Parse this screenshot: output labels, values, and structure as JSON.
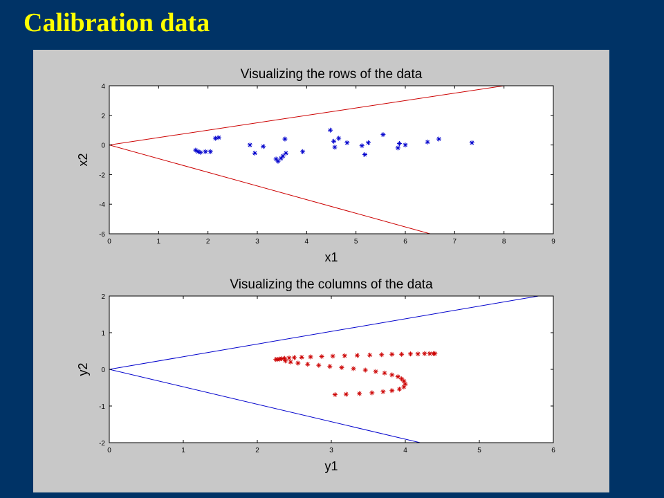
{
  "slide": {
    "title": "Calibration data"
  },
  "chart_data": [
    {
      "type": "scatter",
      "title": "Visualizing the rows of the data",
      "xlabel": "x1",
      "ylabel": "x2",
      "xlim": [
        0,
        9
      ],
      "ylim": [
        -6,
        4
      ],
      "xticks": [
        0,
        1,
        2,
        3,
        4,
        5,
        6,
        7,
        8,
        9
      ],
      "yticks": [
        -6,
        -4,
        -2,
        0,
        2,
        4
      ],
      "grid": false,
      "marker_color": "#0000cc",
      "line_color": "#cc0000",
      "lines": [
        {
          "x": [
            0,
            8
          ],
          "y": [
            0,
            4
          ]
        },
        {
          "x": [
            0,
            6.5
          ],
          "y": [
            0,
            -6
          ]
        }
      ],
      "points": {
        "x": [
          1.75,
          1.8,
          1.85,
          1.95,
          2.05,
          2.15,
          2.22,
          2.85,
          2.95,
          3.12,
          3.38,
          3.42,
          3.48,
          3.52,
          3.56,
          3.58,
          3.92,
          4.48,
          4.55,
          4.57,
          4.65,
          4.82,
          5.12,
          5.18,
          5.25,
          5.55,
          5.85,
          5.88,
          6.0,
          6.45,
          6.68,
          7.35
        ],
        "y": [
          -0.35,
          -0.45,
          -0.5,
          -0.45,
          -0.45,
          0.45,
          0.5,
          0.0,
          -0.55,
          -0.1,
          -0.95,
          -1.1,
          -0.9,
          -0.75,
          0.4,
          -0.55,
          -0.45,
          1.0,
          0.25,
          -0.15,
          0.45,
          0.15,
          -0.05,
          -0.65,
          0.15,
          0.7,
          -0.2,
          0.1,
          0.0,
          0.2,
          0.4,
          0.15
        ]
      }
    },
    {
      "type": "scatter",
      "title": "Visualizing the columns of the data",
      "xlabel": "y1",
      "ylabel": "y2",
      "xlim": [
        0,
        6
      ],
      "ylim": [
        -2,
        2
      ],
      "xticks": [
        0,
        1,
        2,
        3,
        4,
        5,
        6
      ],
      "yticks": [
        -2,
        -1,
        0,
        1,
        2
      ],
      "grid": false,
      "marker_color": "#cc0000",
      "line_color": "#0000cc",
      "lines": [
        {
          "x": [
            0,
            5.8
          ],
          "y": [
            0,
            2
          ]
        },
        {
          "x": [
            0,
            4.2
          ],
          "y": [
            0,
            -2
          ]
        }
      ],
      "points": {
        "x": [
          2.25,
          2.27,
          2.3,
          2.33,
          2.37,
          2.43,
          2.5,
          2.6,
          2.72,
          2.87,
          3.02,
          3.18,
          3.35,
          3.52,
          3.68,
          3.82,
          3.95,
          4.07,
          4.17,
          4.26,
          4.33,
          4.38,
          4.4,
          2.38,
          2.45,
          2.55,
          2.68,
          2.83,
          2.98,
          3.14,
          3.3,
          3.46,
          3.6,
          3.72,
          3.82,
          3.9,
          3.95,
          3.98,
          4.0,
          3.98,
          3.92,
          3.82,
          3.7,
          3.55,
          3.38,
          3.2,
          3.05
        ],
        "y": [
          0.27,
          0.27,
          0.28,
          0.29,
          0.3,
          0.31,
          0.32,
          0.33,
          0.34,
          0.35,
          0.36,
          0.37,
          0.38,
          0.39,
          0.4,
          0.41,
          0.41,
          0.42,
          0.42,
          0.43,
          0.43,
          0.43,
          0.43,
          0.23,
          0.2,
          0.17,
          0.14,
          0.11,
          0.08,
          0.05,
          0.02,
          -0.02,
          -0.06,
          -0.1,
          -0.15,
          -0.2,
          -0.26,
          -0.32,
          -0.4,
          -0.48,
          -0.54,
          -0.58,
          -0.61,
          -0.64,
          -0.66,
          -0.68,
          -0.69
        ]
      }
    }
  ]
}
